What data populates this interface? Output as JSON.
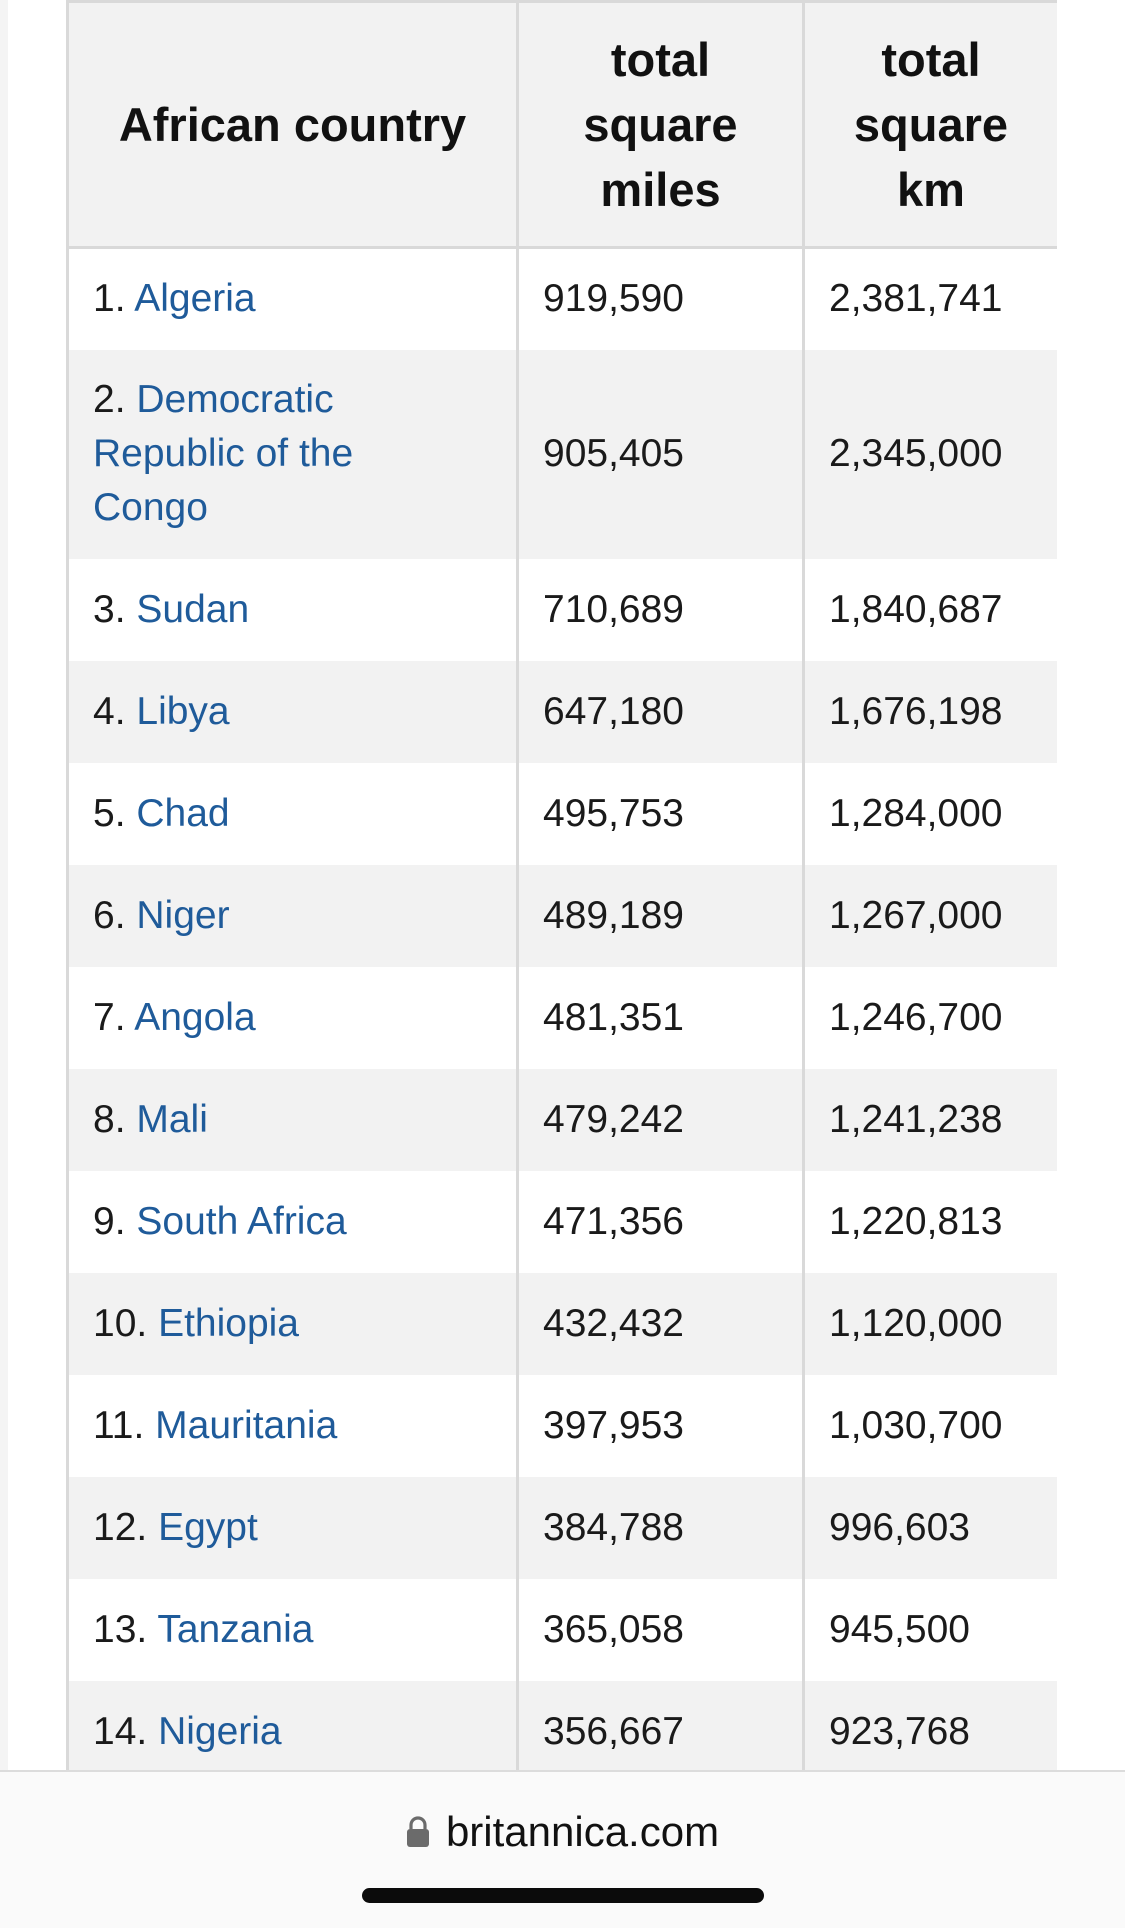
{
  "table": {
    "headers": {
      "country": "African country",
      "miles": [
        "total",
        "square",
        "miles"
      ],
      "km": [
        "total",
        "square",
        "km"
      ]
    },
    "rows": [
      {
        "rank": "1.",
        "country": "Algeria",
        "miles": "919,590",
        "km": "2,381,741"
      },
      {
        "rank": "2.",
        "country": "Democratic Republic of the Congo",
        "miles": "905,405",
        "km": "2,345,000"
      },
      {
        "rank": "3.",
        "country": "Sudan",
        "miles": "710,689",
        "km": "1,840,687"
      },
      {
        "rank": "4.",
        "country": "Libya",
        "miles": "647,180",
        "km": "1,676,198"
      },
      {
        "rank": "5.",
        "country": "Chad",
        "miles": "495,753",
        "km": "1,284,000"
      },
      {
        "rank": "6.",
        "country": "Niger",
        "miles": "489,189",
        "km": "1,267,000"
      },
      {
        "rank": "7.",
        "country": "Angola",
        "miles": "481,351",
        "km": "1,246,700"
      },
      {
        "rank": "8.",
        "country": "Mali",
        "miles": "479,242",
        "km": "1,241,238"
      },
      {
        "rank": "9.",
        "country": "South Africa",
        "miles": "471,356",
        "km": "1,220,813"
      },
      {
        "rank": "10.",
        "country": "Ethiopia",
        "miles": "432,432",
        "km": "1,120,000"
      },
      {
        "rank": "11.",
        "country": "Mauritania",
        "miles": "397,953",
        "km": "1,030,700"
      },
      {
        "rank": "12.",
        "country": "Egypt",
        "miles": "384,788",
        "km": "996,603"
      },
      {
        "rank": "13.",
        "country": "Tanzania",
        "miles": "365,058",
        "km": "945,500"
      },
      {
        "rank": "14.",
        "country": "Nigeria",
        "miles": "356,667",
        "km": "923,768"
      }
    ]
  },
  "browser": {
    "url": "britannica.com",
    "lock_icon": "lock-icon"
  },
  "colors": {
    "link": "#1f5b9a",
    "header_bg": "#f2f2f2",
    "stripe_bg": "#f2f2f2",
    "border": "#d9d9d9"
  }
}
